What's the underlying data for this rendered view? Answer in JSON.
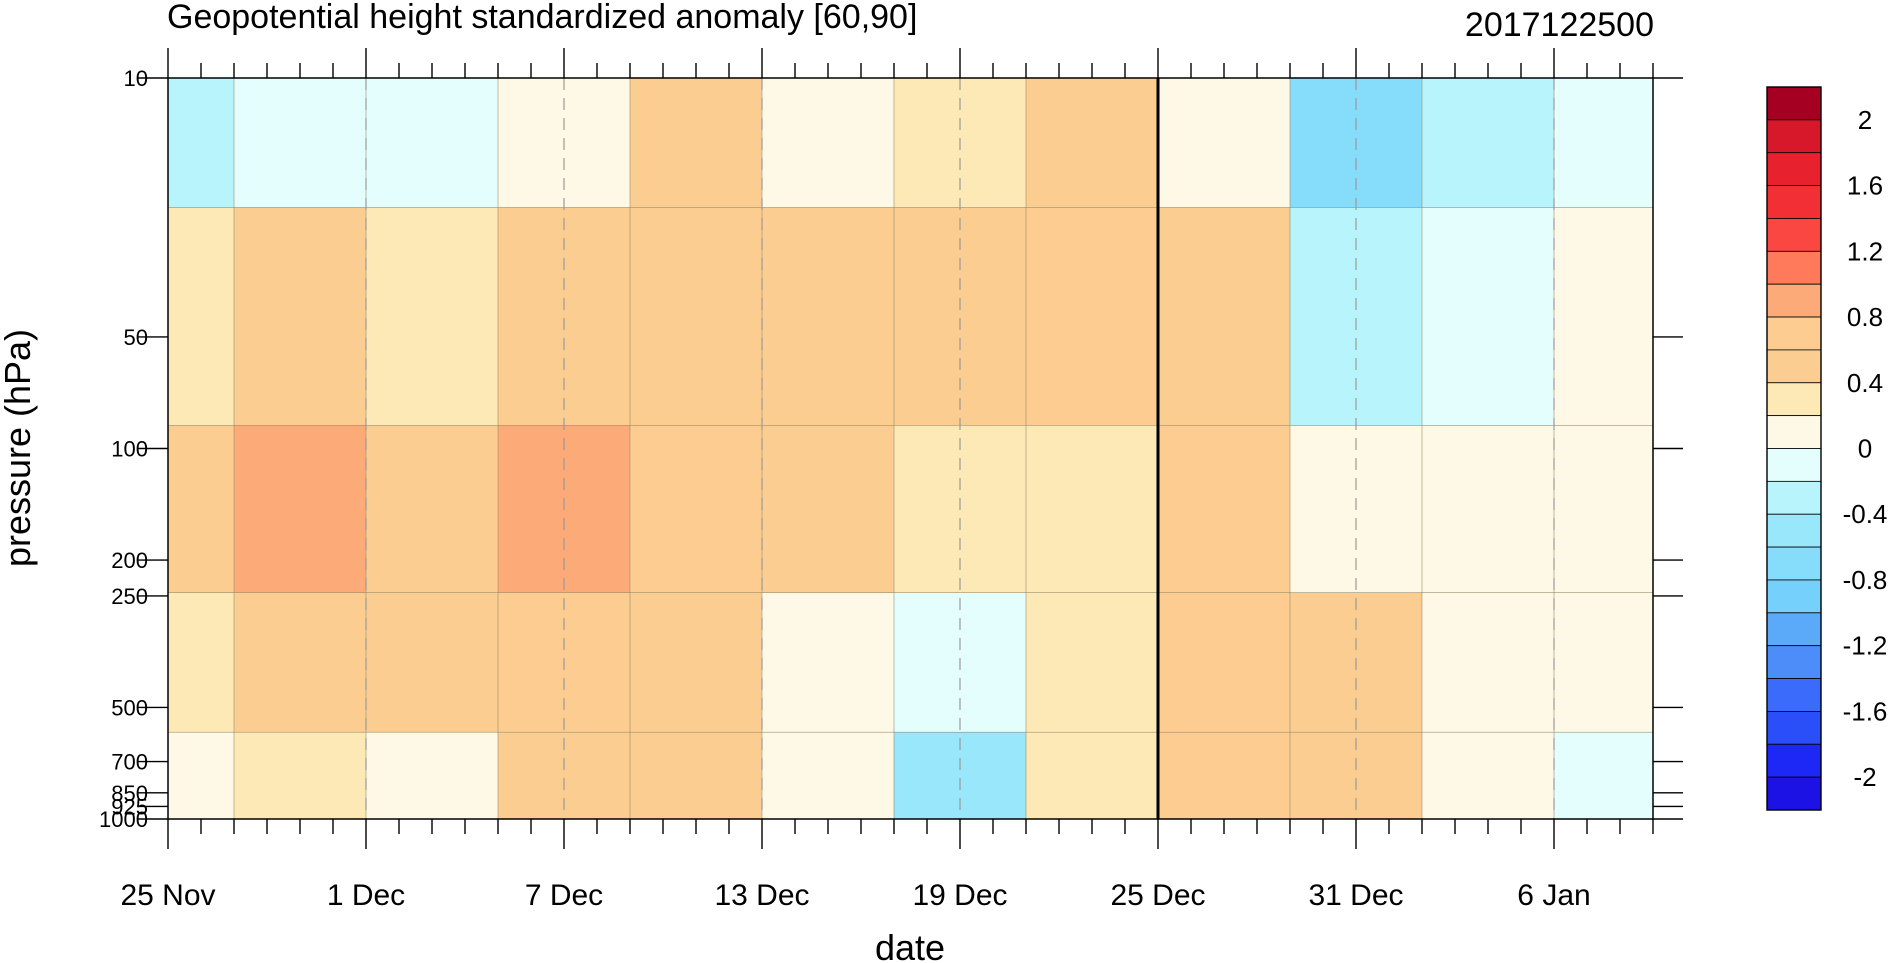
{
  "chart_data": {
    "type": "heatmap",
    "subtype": "filled-contour",
    "title": "Geopotential height standardized anomaly [60,90]",
    "right_title": "2017122500",
    "xlabel": "date",
    "ylabel": "pressure (hPa)",
    "x_ticks": [
      {
        "day": 0,
        "label": "25 Nov"
      },
      {
        "day": 6,
        "label": "1 Dec"
      },
      {
        "day": 12,
        "label": "7 Dec"
      },
      {
        "day": 18,
        "label": "13 Dec"
      },
      {
        "day": 24,
        "label": "19 Dec"
      },
      {
        "day": 30,
        "label": "25 Dec"
      },
      {
        "day": 36,
        "label": "31 Dec"
      },
      {
        "day": 42,
        "label": "6 Jan"
      }
    ],
    "x_range_days": [
      0,
      45
    ],
    "y_ticks": [
      10,
      50,
      100,
      200,
      250,
      500,
      700,
      850,
      925,
      1000
    ],
    "y_tick_labels": [
      "10",
      "50",
      "100",
      "200",
      "250",
      "500",
      "700",
      "850",
      "925",
      "1000"
    ],
    "y_range": [
      10,
      1000
    ],
    "y_scale": "log",
    "y_inverted": true,
    "reference_line_day": 30,
    "colorbar": {
      "labels": [
        "2",
        "1.6",
        "1.2",
        "0.8",
        "0.4",
        "0",
        "-0.4",
        "-0.8",
        "-1.2",
        "-1.6",
        "-2"
      ],
      "levels": [
        2.2,
        2.0,
        1.8,
        1.6,
        1.4,
        1.2,
        1.0,
        0.8,
        0.6,
        0.4,
        0.2,
        0.0,
        -0.2,
        -0.4,
        -0.6,
        -0.8,
        -1.0,
        -1.2,
        -1.4,
        -1.6,
        -1.8,
        -2.0,
        -2.2
      ],
      "colors": [
        "#a50021",
        "#d6182a",
        "#e8212f",
        "#f22f35",
        "#fb4741",
        "#fe7a5a",
        "#fcaa77",
        "#fccc90",
        "#fccd91",
        "#fde9b6",
        "#fef9e6",
        "#e4fdfd",
        "#b7f4fb",
        "#98e7fb",
        "#86ddfb",
        "#75d0fb",
        "#5aaaf9",
        "#4c8dfa",
        "#3b6bfa",
        "#2a4ff9",
        "#1e28f6",
        "#1c12e3"
      ]
    },
    "field_cells": [
      {
        "x": 0,
        "y": 10,
        "v": -0.3
      },
      {
        "x": 4,
        "y": 10,
        "v": -0.1
      },
      {
        "x": 8,
        "y": 10,
        "v": -0.1
      },
      {
        "x": 12,
        "y": 10,
        "v": 0.2
      },
      {
        "x": 16,
        "y": 10,
        "v": 0.45
      },
      {
        "x": 20,
        "y": 10,
        "v": 0.15
      },
      {
        "x": 24,
        "y": 10,
        "v": 0.25
      },
      {
        "x": 28,
        "y": 10,
        "v": 0.5
      },
      {
        "x": 32,
        "y": 10,
        "v": 0.1
      },
      {
        "x": 36,
        "y": 10,
        "v": -0.7
      },
      {
        "x": 40,
        "y": 10,
        "v": -0.3
      },
      {
        "x": 44,
        "y": 10,
        "v": -0.1
      },
      {
        "x": 0,
        "y": 50,
        "v": 0.25
      },
      {
        "x": 4,
        "y": 50,
        "v": 0.5
      },
      {
        "x": 8,
        "y": 50,
        "v": 0.3
      },
      {
        "x": 12,
        "y": 50,
        "v": 0.5
      },
      {
        "x": 16,
        "y": 50,
        "v": 0.6
      },
      {
        "x": 20,
        "y": 50,
        "v": 0.55
      },
      {
        "x": 24,
        "y": 50,
        "v": 0.6
      },
      {
        "x": 28,
        "y": 50,
        "v": 0.75
      },
      {
        "x": 32,
        "y": 50,
        "v": 0.45
      },
      {
        "x": 36,
        "y": 50,
        "v": -0.2
      },
      {
        "x": 40,
        "y": 50,
        "v": -0.1
      },
      {
        "x": 44,
        "y": 50,
        "v": 0.1
      },
      {
        "x": 0,
        "y": 150,
        "v": 0.6
      },
      {
        "x": 4,
        "y": 150,
        "v": 0.85
      },
      {
        "x": 8,
        "y": 150,
        "v": 0.6
      },
      {
        "x": 12,
        "y": 150,
        "v": 0.85
      },
      {
        "x": 16,
        "y": 150,
        "v": 0.7
      },
      {
        "x": 20,
        "y": 150,
        "v": 0.55
      },
      {
        "x": 24,
        "y": 150,
        "v": 0.3
      },
      {
        "x": 28,
        "y": 150,
        "v": 0.35
      },
      {
        "x": 32,
        "y": 150,
        "v": 0.65
      },
      {
        "x": 36,
        "y": 150,
        "v": 0.2
      },
      {
        "x": 40,
        "y": 150,
        "v": 0.1
      },
      {
        "x": 44,
        "y": 150,
        "v": 0.1
      },
      {
        "x": 0,
        "y": 400,
        "v": 0.4
      },
      {
        "x": 4,
        "y": 400,
        "v": 0.6
      },
      {
        "x": 8,
        "y": 400,
        "v": 0.45
      },
      {
        "x": 12,
        "y": 400,
        "v": 0.65
      },
      {
        "x": 16,
        "y": 400,
        "v": 0.6
      },
      {
        "x": 20,
        "y": 400,
        "v": 0.2
      },
      {
        "x": 24,
        "y": 400,
        "v": -0.15
      },
      {
        "x": 28,
        "y": 400,
        "v": 0.3
      },
      {
        "x": 32,
        "y": 400,
        "v": 0.65
      },
      {
        "x": 36,
        "y": 400,
        "v": 0.5
      },
      {
        "x": 40,
        "y": 400,
        "v": 0.1
      },
      {
        "x": 44,
        "y": 400,
        "v": 0.1
      },
      {
        "x": 0,
        "y": 850,
        "v": 0.1
      },
      {
        "x": 4,
        "y": 850,
        "v": 0.25
      },
      {
        "x": 8,
        "y": 850,
        "v": 0.2
      },
      {
        "x": 12,
        "y": 850,
        "v": 0.6
      },
      {
        "x": 16,
        "y": 850,
        "v": 0.6
      },
      {
        "x": 20,
        "y": 850,
        "v": 0.1
      },
      {
        "x": 24,
        "y": 850,
        "v": -0.4
      },
      {
        "x": 28,
        "y": 850,
        "v": 0.4
      },
      {
        "x": 32,
        "y": 850,
        "v": 0.7
      },
      {
        "x": 36,
        "y": 850,
        "v": 0.45
      },
      {
        "x": 40,
        "y": 850,
        "v": 0.1
      },
      {
        "x": 44,
        "y": 850,
        "v": 0.0
      }
    ]
  }
}
